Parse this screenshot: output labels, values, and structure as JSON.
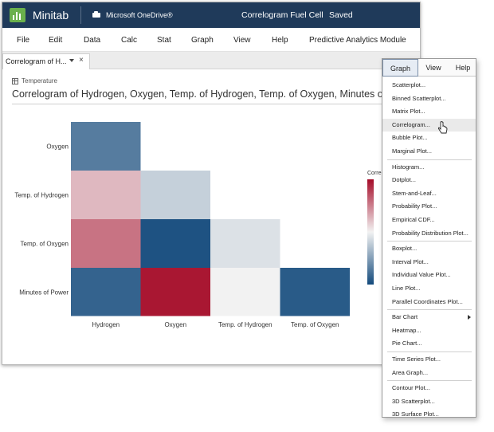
{
  "app": {
    "name": "Minitab",
    "cloud_label": "Microsoft OneDrive®",
    "project_title": "Correlogram Fuel Cell",
    "title_separator": "-",
    "status": "Saved"
  },
  "menu": [
    "File",
    "Edit",
    "Data",
    "Calc",
    "Stat",
    "Graph",
    "View",
    "Help",
    "Predictive Analytics Module"
  ],
  "doc_tab": {
    "label": "Correlogram of H...",
    "close": "×"
  },
  "worksheet": {
    "name": "Temperature"
  },
  "chart_data": {
    "type": "heatmap",
    "title": "Correlogram of Hydrogen, Oxygen, Temp. of Hydrogen, Temp. of Oxygen, Minutes of P",
    "x_categories": [
      "Hydrogen",
      "Oxygen",
      "Temp. of Hydrogen",
      "Temp. of Oxygen"
    ],
    "y_categories": [
      "Oxygen",
      "Temp. of Hydrogen",
      "Temp. of Oxygen",
      "Minutes of Power"
    ],
    "cells": [
      {
        "row": "Oxygen",
        "col": "Hydrogen",
        "value": -0.7
      },
      {
        "row": "Temp. of Hydrogen",
        "col": "Hydrogen",
        "value": 0.25
      },
      {
        "row": "Temp. of Hydrogen",
        "col": "Oxygen",
        "value": -0.2
      },
      {
        "row": "Temp. of Oxygen",
        "col": "Hydrogen",
        "value": 0.55
      },
      {
        "row": "Temp. of Oxygen",
        "col": "Oxygen",
        "value": -0.95
      },
      {
        "row": "Temp. of Oxygen",
        "col": "Temp. of Hydrogen",
        "value": -0.1
      },
      {
        "row": "Minutes of Power",
        "col": "Hydrogen",
        "value": -0.85
      },
      {
        "row": "Minutes of Power",
        "col": "Oxygen",
        "value": 0.95
      },
      {
        "row": "Minutes of Power",
        "col": "Temp. of Hydrogen",
        "value": 0.0
      },
      {
        "row": "Minutes of Power",
        "col": "Temp. of Oxygen",
        "value": -0.9
      }
    ],
    "legend_title": "Correl",
    "color_range": [
      -1,
      1
    ]
  },
  "colors": {
    "negative": "#134a7c",
    "neutral": "#f2f2f2",
    "positive": "#a50b28",
    "titlebar": "#1f3a5a"
  },
  "dropdown": {
    "tabs": [
      "Graph",
      "View",
      "Help"
    ],
    "active_tab": "Graph",
    "groups": [
      [
        "Scatterplot...",
        "Binned Scatterplot...",
        "Matrix Plot...",
        "Correlogram...",
        "Bubble Plot...",
        "Marginal Plot..."
      ],
      [
        "Histogram...",
        "Dotplot...",
        "Stem-and-Leaf...",
        "Probability Plot...",
        "Empirical CDF...",
        "Probability Distribution Plot..."
      ],
      [
        "Boxplot...",
        "Interval Plot...",
        "Individual Value Plot...",
        "Line Plot...",
        "Parallel Coordinates Plot..."
      ],
      [
        "Bar Chart",
        "Heatmap...",
        "Pie Chart..."
      ],
      [
        "Time Series Plot...",
        "Area Graph..."
      ],
      [
        "Contour Plot...",
        "3D Scatterplot...",
        "3D Surface Plot..."
      ]
    ],
    "hovered_item": "Correlogram...",
    "submenu_item": "Bar Chart"
  }
}
